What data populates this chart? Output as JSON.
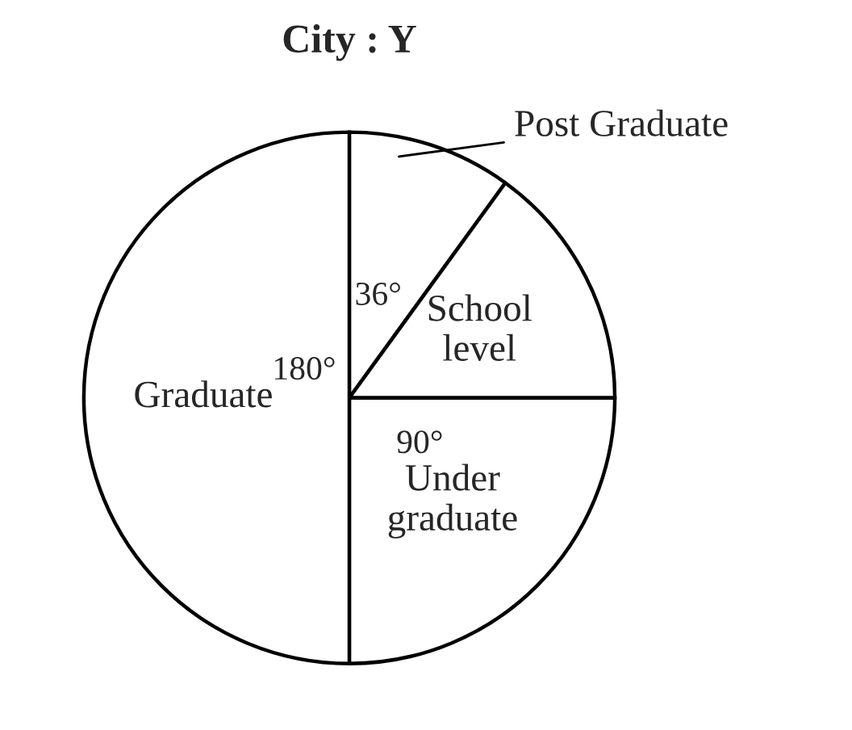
{
  "chart_data": {
    "type": "pie",
    "title": "City : Y",
    "categories": [
      "Post Graduate",
      "School level",
      "Under graduate",
      "Graduate"
    ],
    "values": [
      36,
      54,
      90,
      180
    ],
    "value_labels": [
      "36°",
      null,
      "90°",
      "180°"
    ],
    "colors": [
      "#ffffff",
      "#ffffff",
      "#ffffff",
      "#ffffff"
    ],
    "legend": false
  }
}
